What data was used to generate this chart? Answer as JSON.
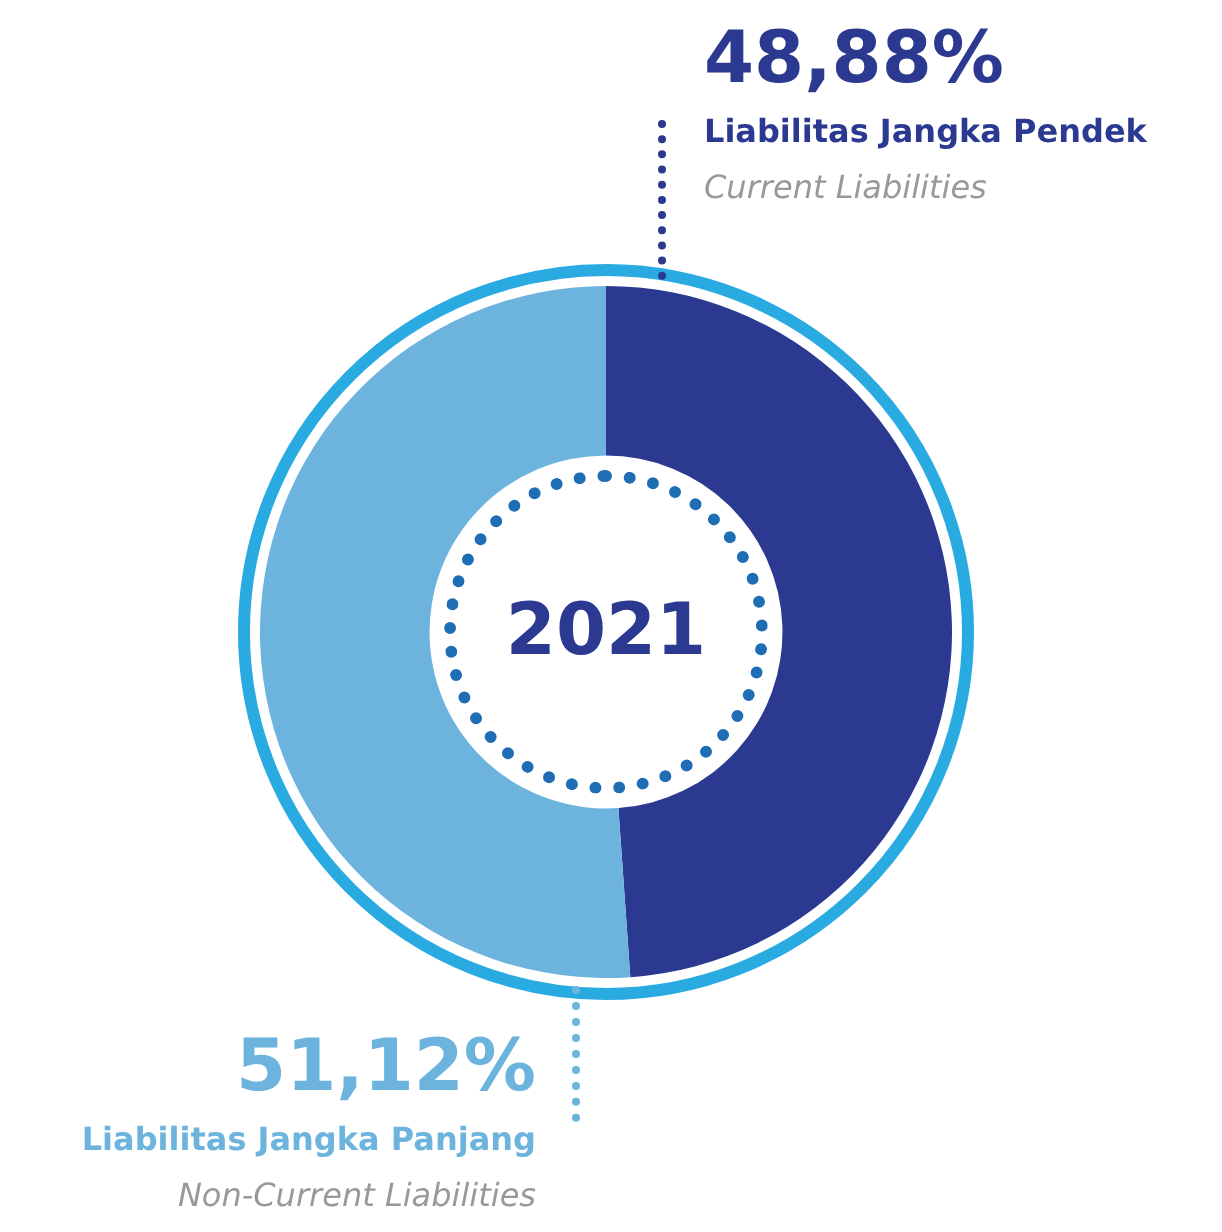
{
  "chart_data": {
    "type": "donut",
    "title": "2021",
    "categories": [
      "Liabilitas Jangka Pendek",
      "Liabilitas Jangka Panjang"
    ],
    "values": [
      48.88,
      51.12
    ],
    "colors": [
      "#2b3990",
      "#6cb4de"
    ],
    "value_labels": [
      "48,88%",
      "51,12%"
    ],
    "annotations": [
      "Current Liabilities",
      "Non-Current Liabilities"
    ]
  }
}
